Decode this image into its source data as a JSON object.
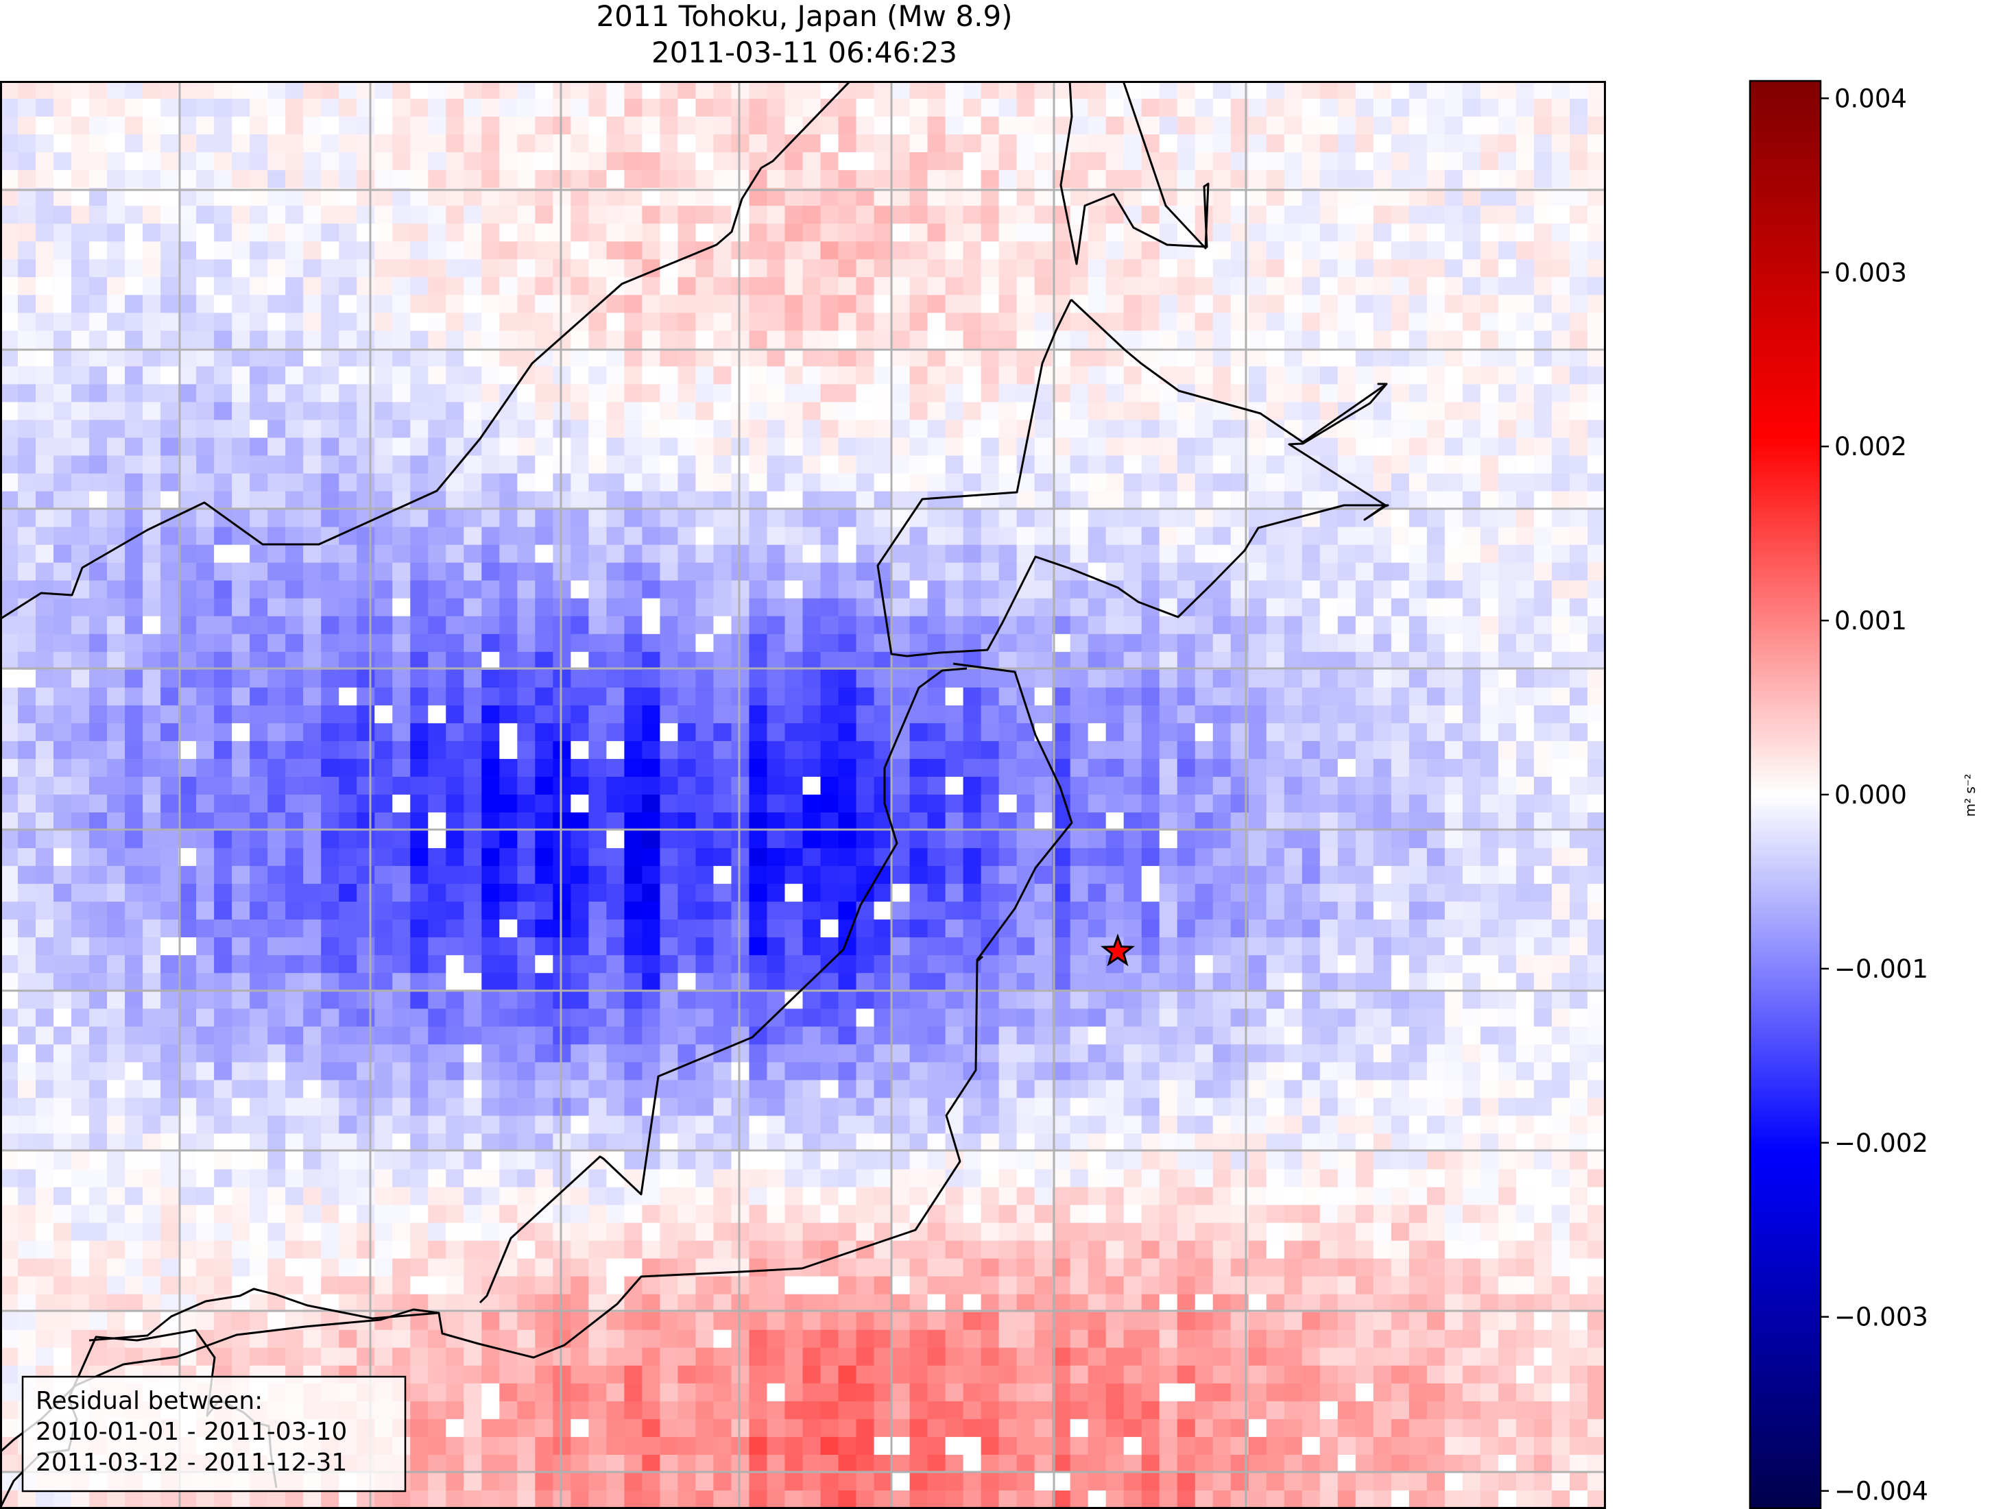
{
  "chart_data": {
    "type": "heatmap",
    "title": "2011 Tohoku, Japan (Mw 8.9)",
    "subtitle": "2011-03-11 06:46:23",
    "colorbar": {
      "min": -0.0041,
      "max": 0.0041,
      "ticks": [
        0.004,
        0.003,
        0.002,
        0.001,
        0.0,
        -0.001,
        -0.002,
        -0.003,
        -0.004
      ],
      "tick_labels": [
        "0.004",
        "0.003",
        "0.002",
        "0.001",
        "0.000",
        "−0.001",
        "−0.002",
        "−0.003",
        "−0.004"
      ],
      "units": "m² s⁻²",
      "colormap": "seismic",
      "colors": [
        "#00004c",
        "#0000ff",
        "#ffffff",
        "#ff0000",
        "#7f0000"
      ]
    },
    "grid": true,
    "cells": {
      "columns": 90,
      "rows": 80,
      "note": ""
    },
    "epicenter_marker": {
      "shape": "star",
      "color": "#ff0000"
    },
    "legend": {
      "placement": "bottom-left",
      "lines": [
        "Residual between:",
        "2010-01-01 - 2011-03-10",
        "2011-03-12 - 2011-12-31"
      ]
    }
  }
}
